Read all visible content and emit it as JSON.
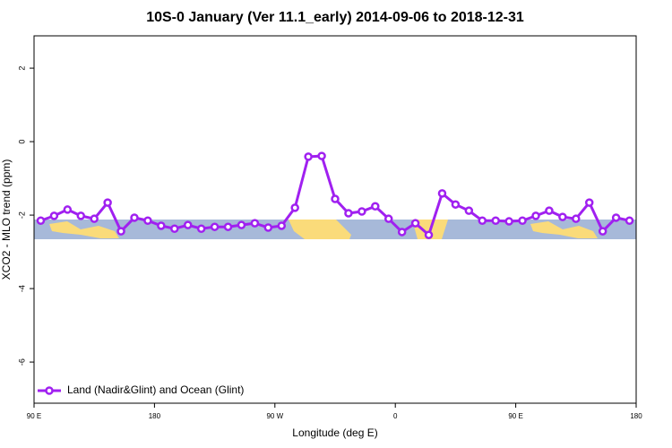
{
  "chart_data": {
    "type": "line",
    "title": "10S-0 January (Ver 11.1_early)   2014-09-06 to 2018-12-31",
    "xlabel": "Longitude (deg E)",
    "ylabel": "XCO2 - MLO trend (ppm)",
    "x": [
      95,
      105,
      115,
      125,
      135,
      145,
      155,
      165,
      175,
      185,
      195,
      205,
      215,
      225,
      235,
      245,
      255,
      265,
      275,
      285,
      295,
      305,
      315,
      325,
      335,
      345,
      355,
      365,
      375,
      385,
      395,
      405,
      415,
      425,
      435,
      445,
      455,
      465,
      475,
      485,
      495,
      505,
      515,
      525,
      535
    ],
    "series": [
      {
        "name": "Land (Nadir&Glint) and Ocean (Glint)",
        "color": "#a020f0",
        "values": [
          -2.15,
          -2.02,
          -1.85,
          -2.02,
          -2.1,
          -1.66,
          -2.44,
          -2.07,
          -2.15,
          -2.29,
          -2.37,
          -2.27,
          -2.37,
          -2.32,
          -2.32,
          -2.27,
          -2.22,
          -2.34,
          -2.29,
          -1.8,
          -0.41,
          -0.39,
          -1.56,
          -1.95,
          -1.9,
          -1.76,
          -2.1,
          -2.46,
          -2.22,
          -2.54,
          -1.41,
          -1.71,
          -1.88,
          -2.15,
          -2.15,
          -2.17,
          -2.15,
          -2.02,
          -1.88,
          -2.05,
          -2.1,
          -1.66,
          -2.44,
          -2.07,
          -2.15
        ]
      }
    ],
    "xlim": [
      90,
      540
    ],
    "xticks": [
      {
        "value": 90,
        "label": "90 E"
      },
      {
        "value": 180,
        "label": "180"
      },
      {
        "value": 270,
        "label": "90 W"
      },
      {
        "value": 360,
        "label": "0"
      },
      {
        "value": 450,
        "label": "90 E"
      },
      {
        "value": 540,
        "label": "180"
      }
    ],
    "ylim": [
      -7.12,
      2.88
    ],
    "yticks": [
      2,
      0,
      -2,
      -4,
      -6
    ],
    "legend": "bottom-left"
  }
}
